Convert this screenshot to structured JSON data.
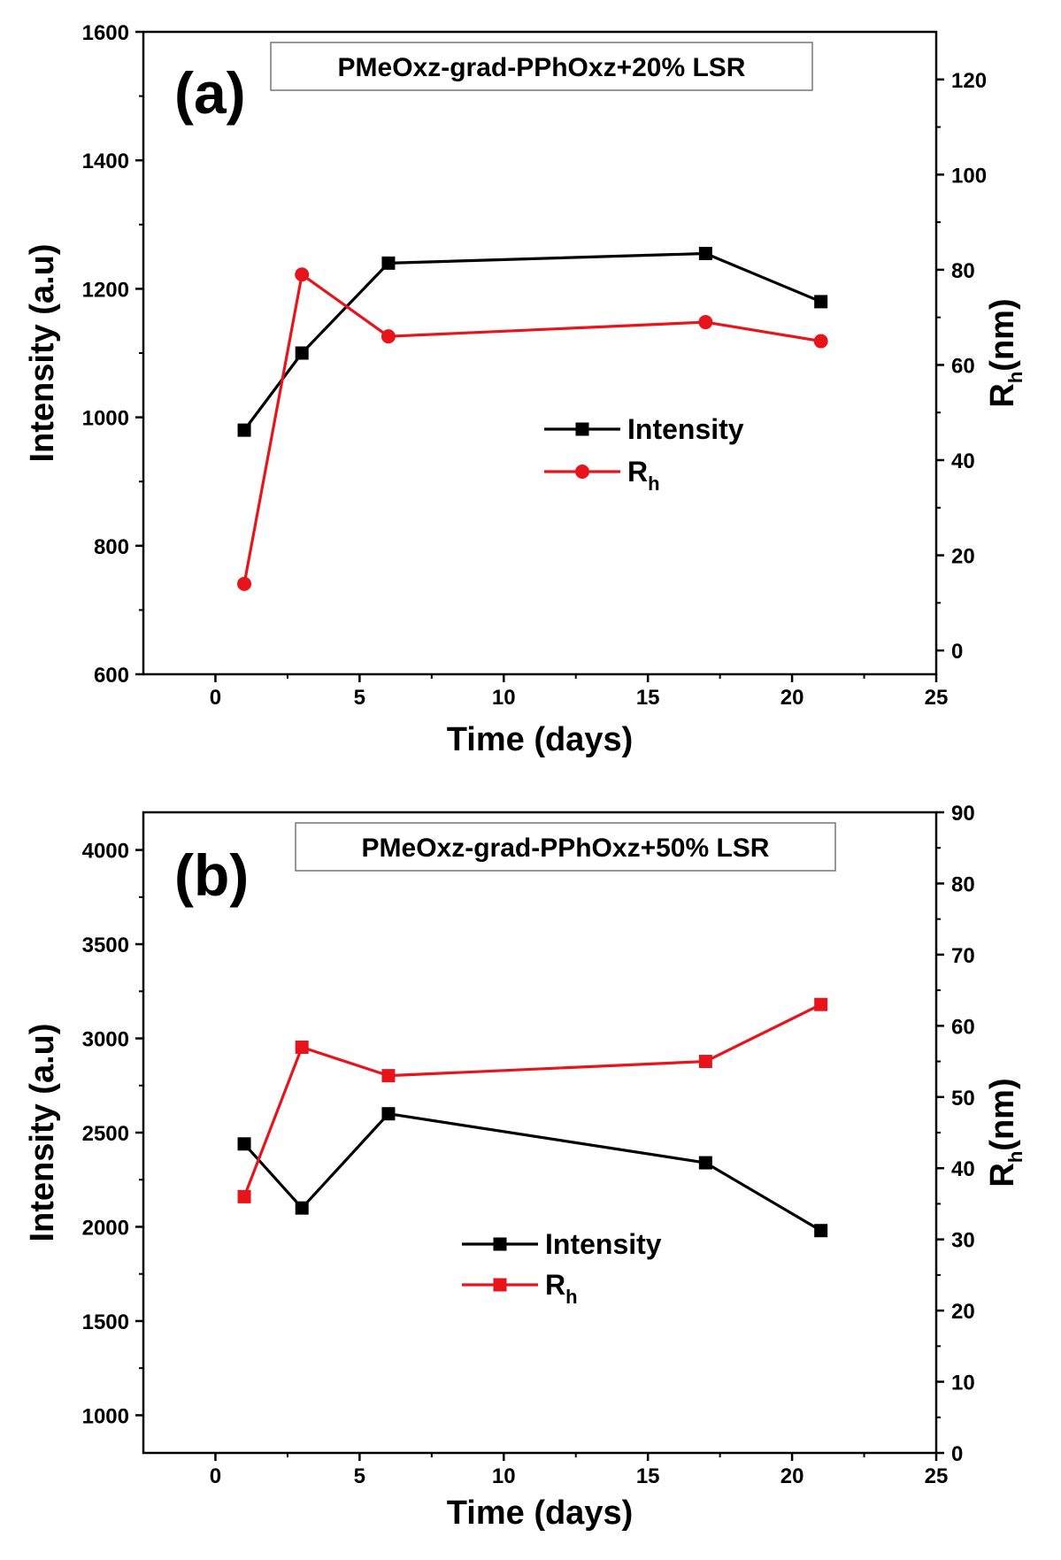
{
  "chart_data": [
    {
      "type": "line",
      "panel_label": "(a)",
      "title": "PMeOxz-grad-PPhOxz+20% LSR",
      "xlabel": "Time (days)",
      "ylabel": "Intensity (a.u)",
      "y2label": {
        "main": "R",
        "sub": "h",
        "tail": "(nm)"
      },
      "xlim": [
        -2.5,
        25
      ],
      "ylim": [
        600,
        1600
      ],
      "y2lim": [
        -5,
        130
      ],
      "x_ticks": [
        "0",
        "5",
        "10",
        "15",
        "20",
        "25"
      ],
      "y_ticks": [
        "600",
        "800",
        "1000",
        "1200",
        "1400",
        "1600"
      ],
      "y2_ticks": [
        "0",
        "20",
        "40",
        "60",
        "80",
        "100",
        "120"
      ],
      "legend_position": "center-right",
      "series": [
        {
          "name": "Intensity",
          "axis": "left",
          "color": "#000000",
          "marker": "square",
          "x": [
            1,
            3,
            6,
            17,
            21
          ],
          "y": [
            980,
            1100,
            1240,
            1255,
            1180
          ]
        },
        {
          "name": "R",
          "name_sub": "h",
          "axis": "right",
          "color": "#e8141b",
          "marker": "circle",
          "x": [
            1,
            3,
            6,
            17,
            21
          ],
          "y": [
            14,
            79,
            66,
            69,
            65
          ]
        }
      ]
    },
    {
      "type": "line",
      "panel_label": "(b)",
      "title": "PMeOxz-grad-PPhOxz+50% LSR",
      "xlabel": "Time (days)",
      "ylabel": "Intensity (a.u)",
      "y2label": {
        "main": "R",
        "sub": "h",
        "tail": "(nm)"
      },
      "xlim": [
        -2.5,
        25
      ],
      "ylim": [
        800,
        4200
      ],
      "y2lim": [
        0,
        90
      ],
      "x_ticks": [
        "0",
        "5",
        "10",
        "15",
        "20",
        "25"
      ],
      "y_ticks": [
        "1000",
        "1500",
        "2000",
        "2500",
        "3000",
        "3500",
        "4000"
      ],
      "y2_ticks": [
        "0",
        "10",
        "20",
        "30",
        "40",
        "50",
        "60",
        "70",
        "80",
        "90"
      ],
      "legend_position": "center",
      "series": [
        {
          "name": "Intensity",
          "axis": "left",
          "color": "#000000",
          "marker": "square",
          "x": [
            1,
            3,
            6,
            17,
            21
          ],
          "y": [
            2440,
            2100,
            2600,
            2340,
            1980
          ]
        },
        {
          "name": "R",
          "name_sub": "h",
          "axis": "right",
          "color": "#e8141b",
          "marker": "square",
          "x": [
            1,
            3,
            6,
            17,
            21
          ],
          "y": [
            36,
            57,
            53,
            55,
            63
          ]
        }
      ]
    }
  ]
}
